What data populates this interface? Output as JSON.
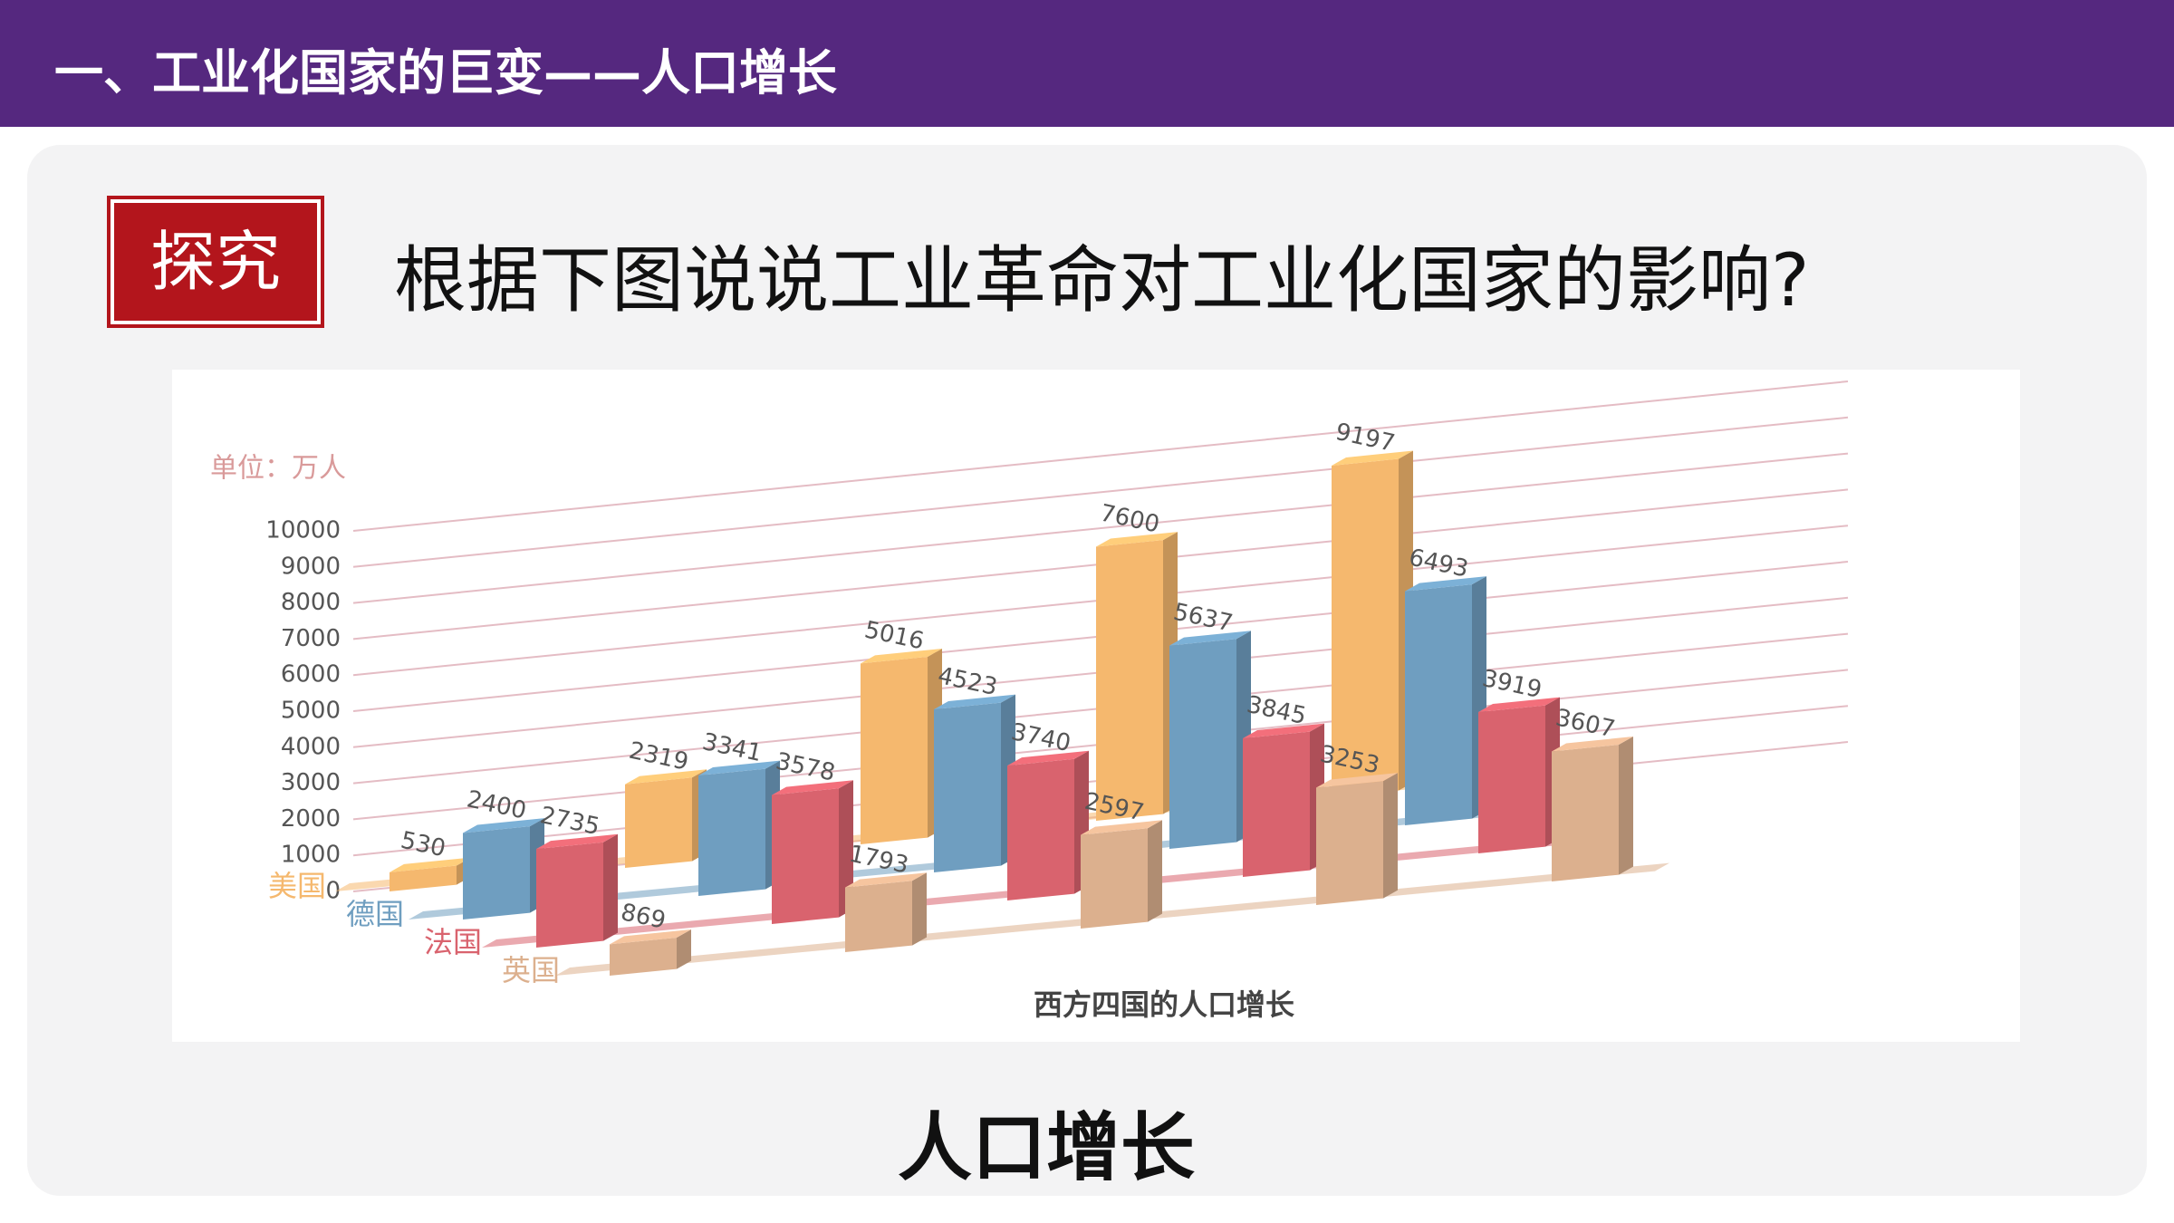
{
  "header": {
    "title": "一、工业化国家的巨变——人口增长"
  },
  "badge": "探究",
  "question": "根据下图说说工业革命对工业化国家的影响?",
  "caption_bottom": "人口增长",
  "chart_data": {
    "type": "bar3d",
    "unit_label": "单位：万人",
    "title": "西方四国的人口增长",
    "categories": [
      null,
      null,
      null,
      null,
      null
    ],
    "series": [
      {
        "name": "美国",
        "color": "#f5b86e",
        "values": [
          530,
          2319,
          5016,
          7600,
          9197
        ]
      },
      {
        "name": "德国",
        "color": "#6f9ec0",
        "values": [
          2400,
          3341,
          4523,
          5637,
          6493
        ]
      },
      {
        "name": "法国",
        "color": "#d9636e",
        "values": [
          2735,
          3578,
          3740,
          3845,
          3919
        ]
      },
      {
        "name": "英国",
        "color": "#dcb08e",
        "values": [
          869,
          1793,
          2597,
          3253,
          3607
        ]
      }
    ],
    "ylim": [
      0,
      10000
    ],
    "yticks": [
      0,
      1000,
      2000,
      3000,
      4000,
      5000,
      6000,
      7000,
      8000,
      9000,
      10000
    ],
    "grid": true
  }
}
